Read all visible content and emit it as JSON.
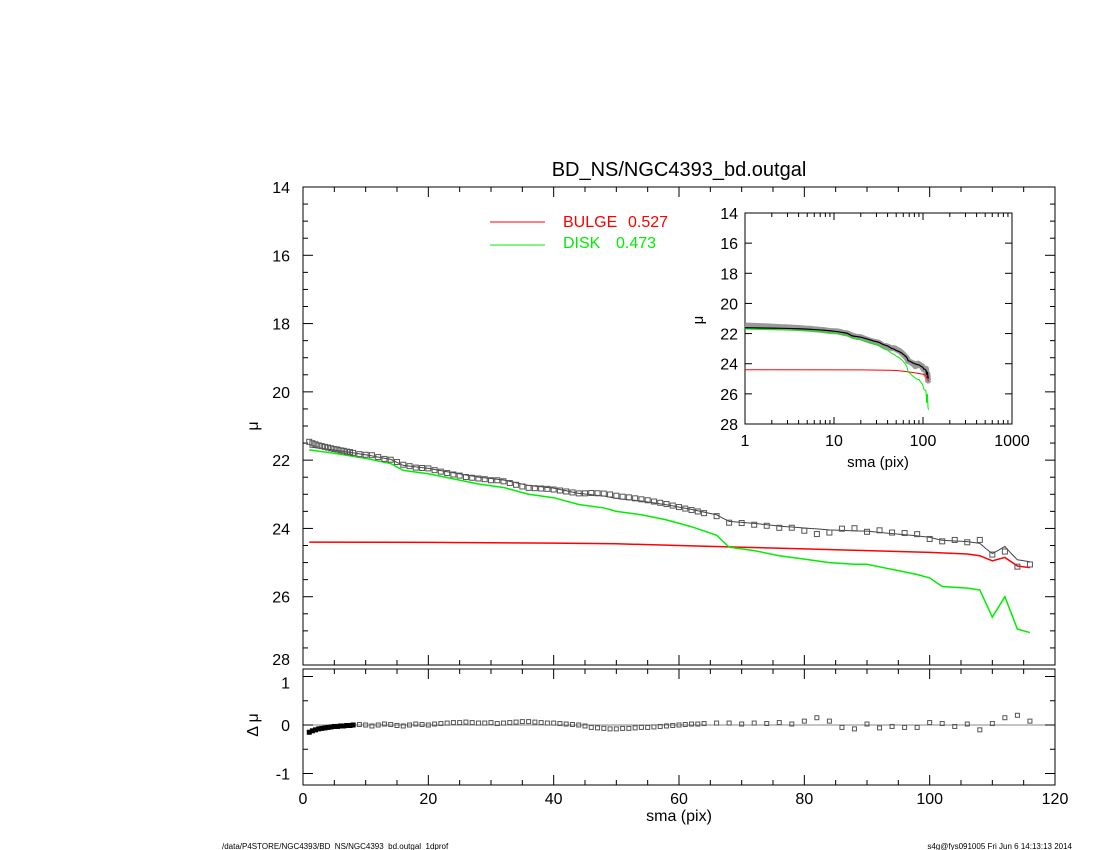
{
  "chart_data": {
    "type": "line",
    "title": "BD_NS/NGC4393_bd.outgal",
    "xlabel": "sma (pix)",
    "ylabel": "μ",
    "residual_ylabel": "Δ μ",
    "xlim": [
      0,
      120
    ],
    "ylim": [
      28,
      14
    ],
    "residual_ylim": [
      -1.2,
      1.2
    ],
    "x_ticks": [
      "0",
      "20",
      "40",
      "60",
      "80",
      "100",
      "120"
    ],
    "y_ticks": [
      "14",
      "16",
      "18",
      "20",
      "22",
      "24",
      "26",
      "28"
    ],
    "residual_ticks": [
      "1",
      "0",
      "-1"
    ],
    "legend": [
      {
        "label": "BULGE",
        "value": "0.527",
        "color": "#ff0000"
      },
      {
        "label": "DISK",
        "value": "0.473",
        "color": "#00ee00"
      }
    ],
    "legend_placement": "top-center",
    "series": [
      {
        "name": "BULGE",
        "color": "#ff0000",
        "points": [
          [
            1,
            24.4
          ],
          [
            20,
            24.41
          ],
          [
            40,
            24.43
          ],
          [
            50,
            24.45
          ],
          [
            60,
            24.5
          ],
          [
            70,
            24.55
          ],
          [
            80,
            24.6
          ],
          [
            90,
            24.65
          ],
          [
            100,
            24.7
          ],
          [
            106,
            24.75
          ],
          [
            108,
            24.8
          ],
          [
            110,
            24.95
          ],
          [
            112,
            24.85
          ],
          [
            114,
            25.1
          ],
          [
            116,
            25.15
          ]
        ]
      },
      {
        "name": "DISK",
        "color": "#00ee00",
        "points": [
          [
            1,
            21.7
          ],
          [
            5,
            21.8
          ],
          [
            10,
            21.95
          ],
          [
            14,
            22.1
          ],
          [
            16,
            22.3
          ],
          [
            20,
            22.4
          ],
          [
            24,
            22.55
          ],
          [
            28,
            22.7
          ],
          [
            32,
            22.8
          ],
          [
            36,
            23.0
          ],
          [
            40,
            23.1
          ],
          [
            44,
            23.3
          ],
          [
            48,
            23.4
          ],
          [
            50,
            23.5
          ],
          [
            54,
            23.6
          ],
          [
            58,
            23.75
          ],
          [
            62,
            23.95
          ],
          [
            66,
            24.2
          ],
          [
            68,
            24.55
          ],
          [
            72,
            24.65
          ],
          [
            76,
            24.8
          ],
          [
            80,
            24.9
          ],
          [
            84,
            25.0
          ],
          [
            88,
            25.05
          ],
          [
            90,
            25.05
          ],
          [
            94,
            25.2
          ],
          [
            98,
            25.35
          ],
          [
            100,
            25.45
          ],
          [
            102,
            25.7
          ],
          [
            106,
            25.75
          ],
          [
            108,
            25.8
          ],
          [
            110,
            26.6
          ],
          [
            112,
            26.0
          ],
          [
            114,
            26.95
          ],
          [
            116,
            27.05
          ]
        ]
      }
    ],
    "observed_residuals": [
      [
        1,
        -0.15
      ],
      [
        1.5,
        -0.12
      ],
      [
        2,
        -0.1
      ],
      [
        2.5,
        -0.08
      ],
      [
        3,
        -0.07
      ],
      [
        3.5,
        -0.06
      ],
      [
        4,
        -0.05
      ],
      [
        4.5,
        -0.04
      ],
      [
        5,
        -0.03
      ],
      [
        5.5,
        -0.03
      ],
      [
        6,
        -0.02
      ],
      [
        6.5,
        -0.02
      ],
      [
        7,
        -0.01
      ],
      [
        7.5,
        -0.01
      ],
      [
        8,
        0
      ],
      [
        9,
        0.01
      ],
      [
        10,
        0
      ],
      [
        11,
        -0.02
      ],
      [
        12,
        0
      ],
      [
        13,
        0.02
      ],
      [
        14,
        0.01
      ],
      [
        15,
        -0.01
      ],
      [
        16,
        -0.02
      ],
      [
        17,
        0
      ],
      [
        18,
        0.02
      ],
      [
        19,
        0.01
      ],
      [
        20,
        0
      ],
      [
        21,
        0.02
      ],
      [
        22,
        0.03
      ],
      [
        23,
        0.04
      ],
      [
        24,
        0.05
      ],
      [
        25,
        0.05
      ],
      [
        26,
        0.06
      ],
      [
        27,
        0.05
      ],
      [
        28,
        0.04
      ],
      [
        29,
        0.04
      ],
      [
        30,
        0.05
      ],
      [
        31,
        0.03
      ],
      [
        32,
        0.04
      ],
      [
        33,
        0.05
      ],
      [
        34,
        0.06
      ],
      [
        35,
        0.07
      ],
      [
        36,
        0.07
      ],
      [
        37,
        0.06
      ],
      [
        38,
        0.05
      ],
      [
        39,
        0.04
      ],
      [
        40,
        0.04
      ],
      [
        41,
        0.03
      ],
      [
        42,
        0.02
      ],
      [
        43,
        0.01
      ],
      [
        44,
        0
      ],
      [
        45,
        -0.02
      ],
      [
        46,
        -0.05
      ],
      [
        47,
        -0.06
      ],
      [
        48,
        -0.07
      ],
      [
        49,
        -0.08
      ],
      [
        50,
        -0.08
      ],
      [
        51,
        -0.07
      ],
      [
        52,
        -0.07
      ],
      [
        53,
        -0.06
      ],
      [
        54,
        -0.05
      ],
      [
        55,
        -0.05
      ],
      [
        56,
        -0.04
      ],
      [
        57,
        -0.03
      ],
      [
        58,
        -0.02
      ],
      [
        59,
        -0.01
      ],
      [
        60,
        0
      ],
      [
        61,
        0.01
      ],
      [
        62,
        0.02
      ],
      [
        63,
        0.02
      ],
      [
        64,
        0.03
      ],
      [
        66,
        0.04
      ],
      [
        68,
        0.04
      ],
      [
        70,
        0.02
      ],
      [
        72,
        0.04
      ],
      [
        74,
        0.03
      ],
      [
        76,
        0.05
      ],
      [
        78,
        0.02
      ],
      [
        80,
        0.08
      ],
      [
        82,
        0.15
      ],
      [
        84,
        0.08
      ],
      [
        86,
        -0.05
      ],
      [
        88,
        -0.08
      ],
      [
        90,
        0.02
      ],
      [
        92,
        -0.06
      ],
      [
        94,
        -0.03
      ],
      [
        96,
        -0.05
      ],
      [
        98,
        -0.05
      ],
      [
        100,
        0.05
      ],
      [
        102,
        0.03
      ],
      [
        104,
        -0.03
      ],
      [
        106,
        0.02
      ],
      [
        108,
        -0.1
      ],
      [
        110,
        0.03
      ],
      [
        112,
        0.15
      ],
      [
        114,
        0.2
      ],
      [
        116,
        0.08
      ]
    ],
    "inset": {
      "type": "line",
      "xscale": "log",
      "xlim": [
        1,
        1000
      ],
      "ylim": [
        28,
        14
      ],
      "xlabel": "sma (pix)",
      "ylabel": "μ",
      "x_ticks": [
        "1",
        "10",
        "100",
        "1000"
      ],
      "y_ticks": [
        "14",
        "16",
        "18",
        "20",
        "22",
        "24",
        "26",
        "28"
      ]
    }
  },
  "footer": {
    "left": "/data/P4STORE/NGC4393/BD_NS/NGC4393_bd.outgal_1dprof",
    "right": "s4g@fys091005  Fri Jun  6 14:13:13 2014"
  }
}
